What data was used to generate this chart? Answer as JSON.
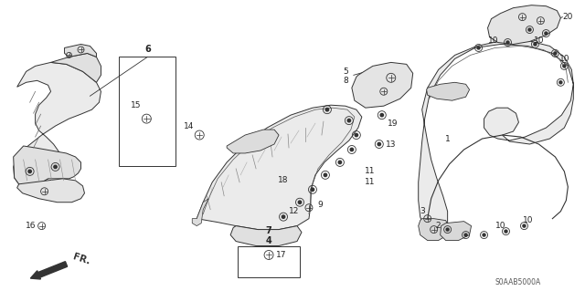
{
  "bg_color": "#ffffff",
  "diagram_code": "S0AAB5000A",
  "line_color": "#333333",
  "gray_fill": "#e8e8e8",
  "label_color": "#222222"
}
